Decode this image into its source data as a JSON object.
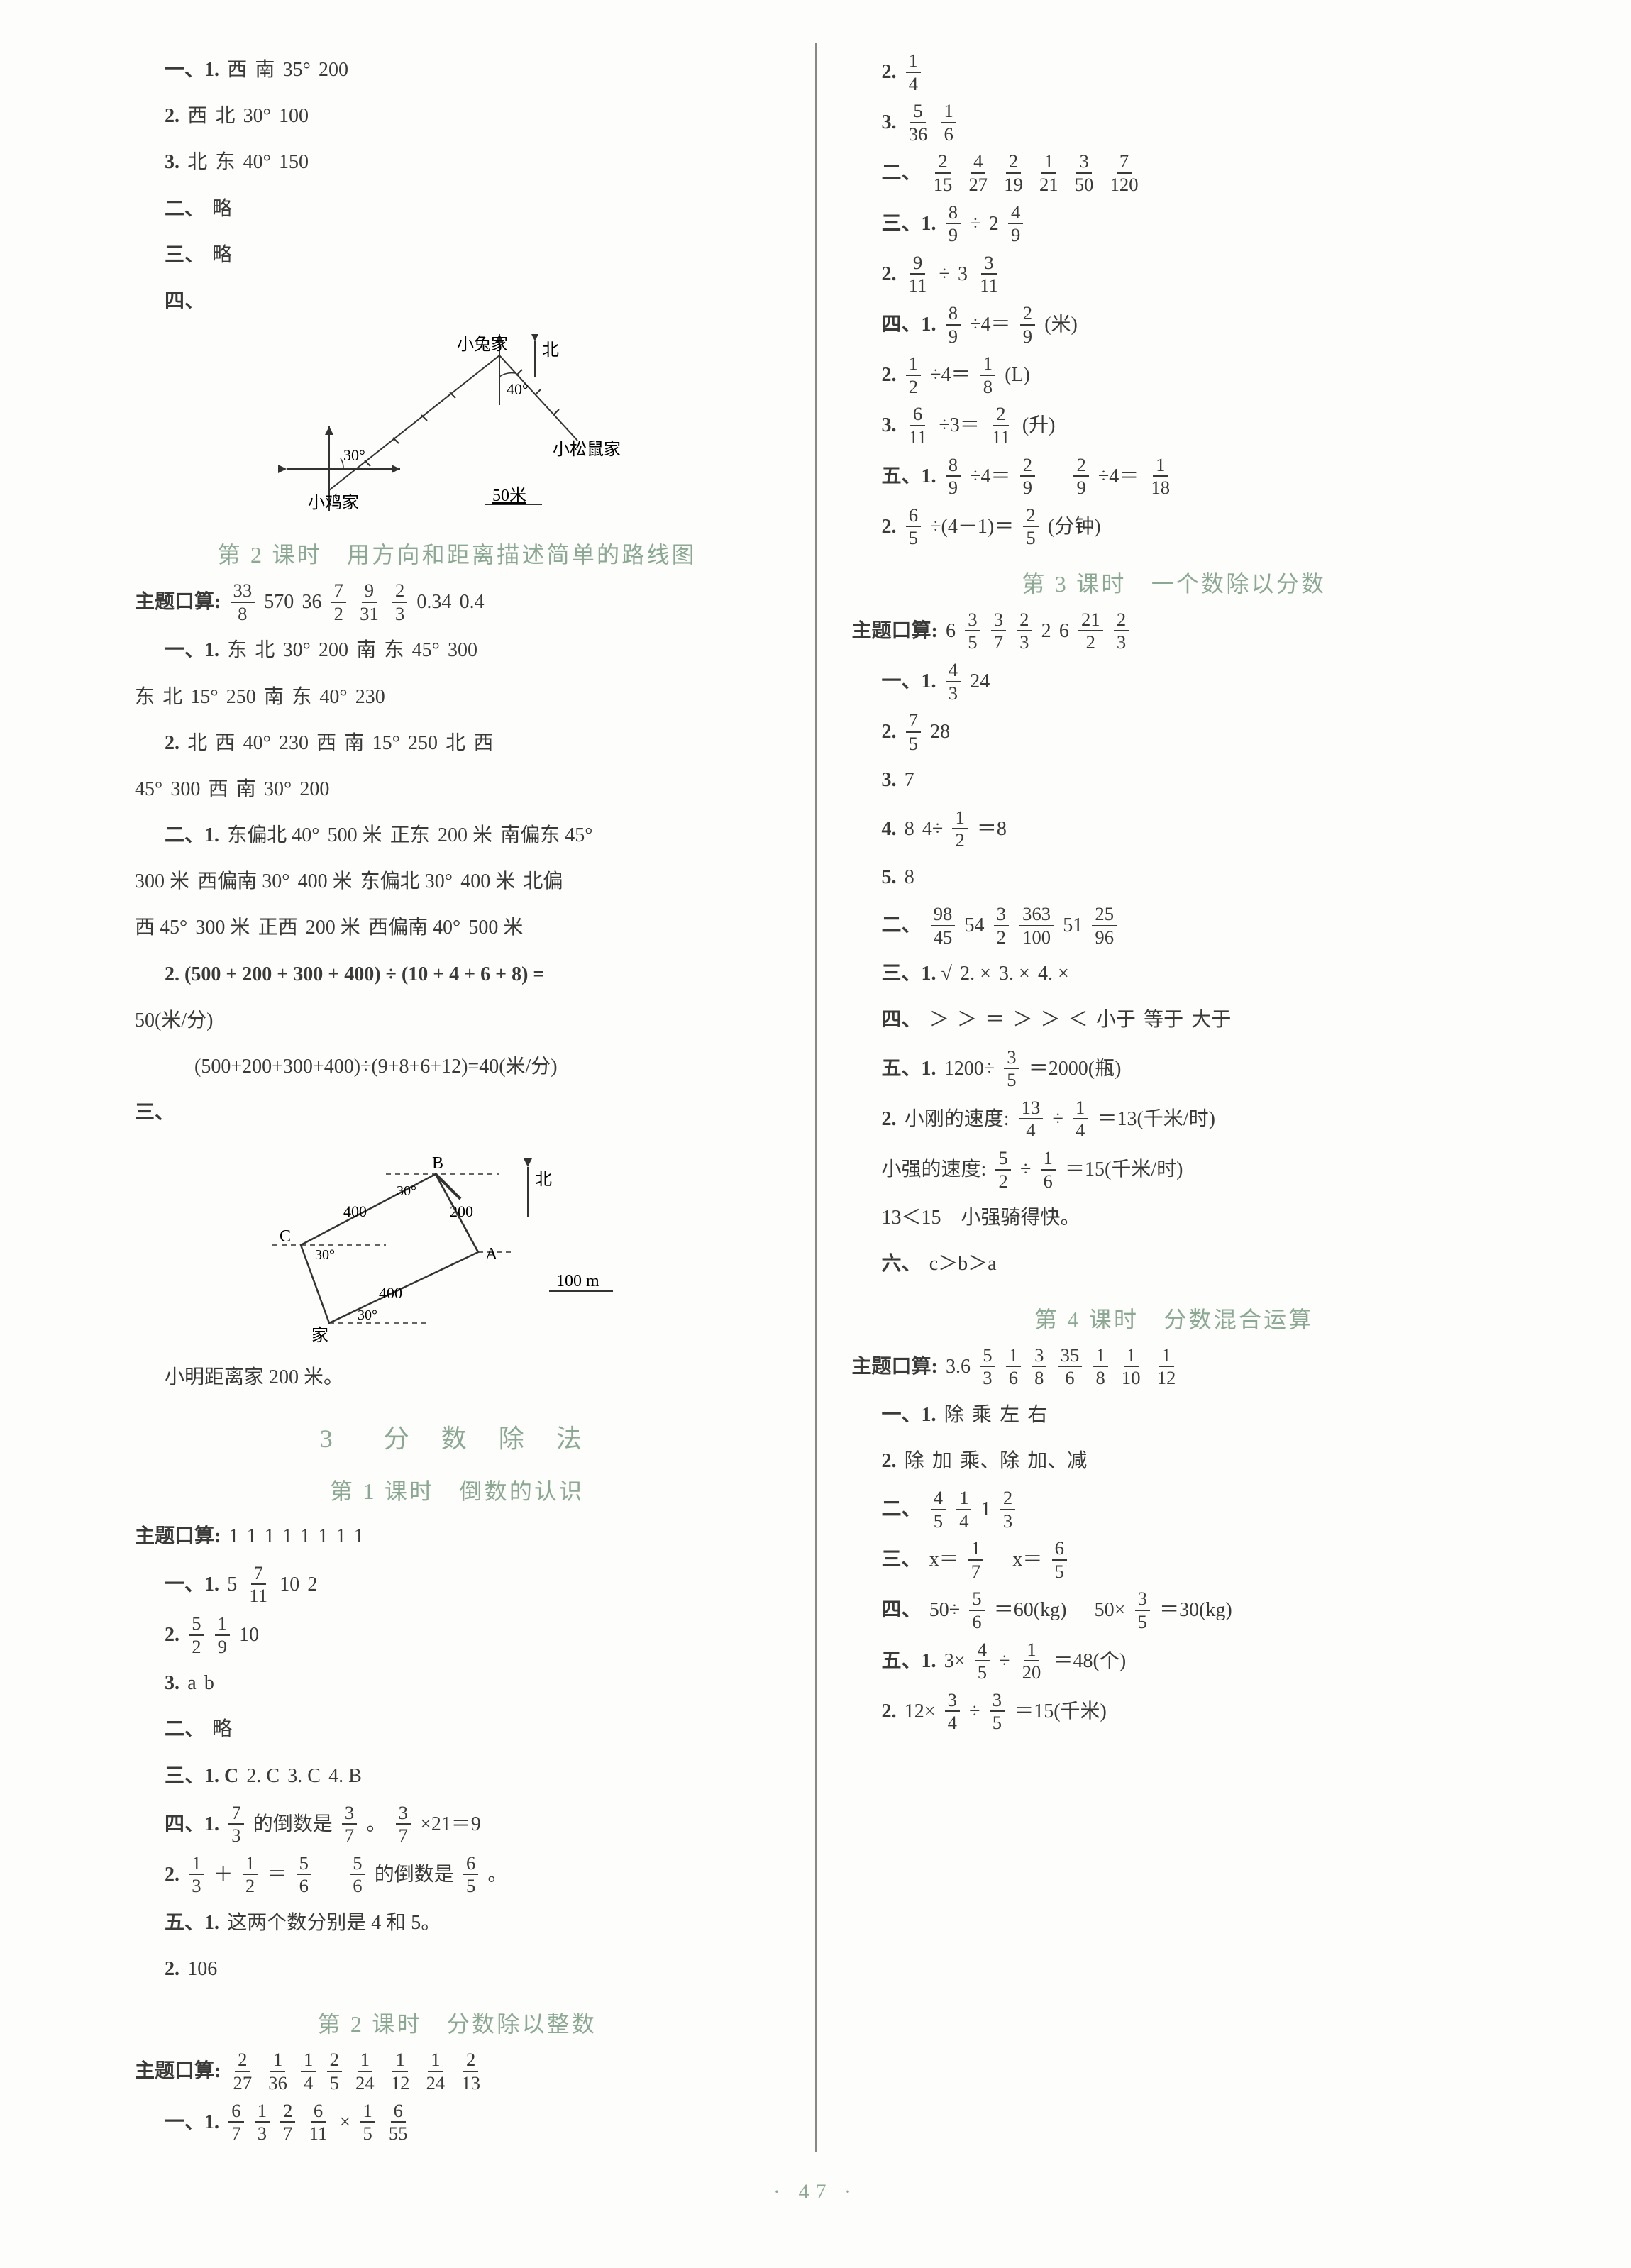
{
  "page_number": "47",
  "colors": {
    "accent": "#8aa892",
    "text": "#3a3a38",
    "bg": "#fdfdfb",
    "rule": "#888888"
  },
  "left": {
    "top_block": [
      {
        "prefix": "一、1.",
        "parts": [
          "西",
          "南",
          "35°",
          "200"
        ]
      },
      {
        "prefix": "2.",
        "parts": [
          "西",
          "北",
          "30°",
          "100"
        ]
      },
      {
        "prefix": "3.",
        "parts": [
          "北",
          "东",
          "40°",
          "150"
        ]
      },
      {
        "prefix": "二、",
        "parts": [
          "略"
        ]
      },
      {
        "prefix": "三、",
        "parts": [
          "略"
        ]
      },
      {
        "prefix": "四、",
        "parts": []
      }
    ],
    "diagram1": {
      "labels": {
        "rabbit": "小兔家",
        "north": "北",
        "chicken": "小鸡家",
        "squirrel": "小松鼠家",
        "scale": "50米",
        "a30": "30°",
        "a40": "40°"
      }
    },
    "lesson2_title": "第 2 课时　用方向和距离描述简单的路线图",
    "lesson2": {
      "kousuan_label": "主题口算:",
      "kousuan": [
        {
          "f": [
            "33",
            "8"
          ]
        },
        "570",
        "36",
        {
          "f": [
            "7",
            "2"
          ]
        },
        {
          "f": [
            "9",
            "31"
          ]
        },
        {
          "f": [
            "2",
            "3"
          ]
        },
        "0.34",
        "0.4"
      ],
      "q1": [
        {
          "prefix": "一、1.",
          "parts": [
            "东",
            "北",
            "30°",
            "200",
            "南",
            "东",
            "45°",
            "300"
          ]
        },
        {
          "prefix": "",
          "parts": [
            "东",
            "北",
            "15°",
            "250",
            "南",
            "东",
            "40°",
            "230"
          ]
        },
        {
          "prefix": "2.",
          "parts": [
            "北",
            "西",
            "40°",
            "230",
            "西",
            "南",
            "15°",
            "250",
            "北",
            "西"
          ]
        },
        {
          "prefix": "",
          "parts": [
            "45°",
            "300",
            "西",
            "南",
            "30°",
            "200"
          ]
        },
        {
          "prefix": "二、1.",
          "parts": [
            "东偏北 40°",
            "500 米",
            "正东",
            "200 米",
            "南偏东 45°"
          ]
        },
        {
          "prefix": "",
          "parts": [
            "300 米",
            "西偏南 30°",
            "400 米",
            "东偏北 30°",
            "400 米",
            "北偏"
          ]
        },
        {
          "prefix": "",
          "parts": [
            "西 45°",
            "300 米",
            "正西",
            "200 米",
            "西偏南 40°",
            "500 米"
          ]
        }
      ],
      "q2a": "2. (500 + 200 + 300 + 400) ÷ (10 + 4 + 6 + 8) =",
      "q2b": "50(米/分)",
      "q2c": "(500+200+300+400)÷(9+8+6+12)=40(米/分)",
      "q3_label": "三、",
      "diagram2": {
        "labels": {
          "B": "B",
          "A": "A",
          "C": "C",
          "home": "家",
          "north": "北",
          "scale": "100 m",
          "d200": "200",
          "d400a": "400",
          "d400b": "400",
          "a30a": "30°",
          "a30b": "30°",
          "a30c": "30°"
        }
      },
      "footer": "小明距离家 200 米。"
    },
    "section3_title": "3　分 数 除 法",
    "lesson1_title": "第 1 课时　倒数的认识",
    "lesson1": {
      "kousuan_label": "主题口算:",
      "kousuan": [
        "1",
        "1",
        "1",
        "1",
        "1",
        "1",
        "1",
        "1"
      ],
      "lines": [
        {
          "prefix": "一、1.",
          "parts": [
            "5",
            {
              "f": [
                "7",
                "11"
              ]
            },
            "10",
            "2"
          ]
        },
        {
          "prefix": "2.",
          "parts": [
            {
              "f": [
                "5",
                "2"
              ]
            },
            {
              "f": [
                "1",
                "9"
              ]
            },
            "10"
          ]
        },
        {
          "prefix": "3.",
          "parts": [
            "a",
            "b"
          ]
        },
        {
          "prefix": "二、",
          "parts": [
            "略"
          ]
        },
        {
          "prefix": "三、1. C",
          "parts": [
            "2. C",
            "3. C",
            "4. B"
          ]
        }
      ],
      "q4": [
        {
          "pre": "四、1.",
          "parts": [
            {
              "f": [
                "7",
                "3"
              ]
            },
            "的倒数是",
            {
              "f": [
                "3",
                "7"
              ]
            },
            "。",
            {
              "f": [
                "3",
                "7"
              ]
            },
            "×21＝9"
          ]
        },
        {
          "pre": "2.",
          "parts": [
            {
              "f": [
                "1",
                "3"
              ]
            },
            "＋",
            {
              "f": [
                "1",
                "2"
              ]
            },
            "＝",
            {
              "f": [
                "5",
                "6"
              ]
            },
            "　",
            {
              "f": [
                "5",
                "6"
              ]
            },
            "的倒数是",
            {
              "f": [
                "6",
                "5"
              ]
            },
            "。"
          ]
        },
        {
          "pre": "五、1.",
          "parts": [
            "这两个数分别是 4 和 5。"
          ]
        },
        {
          "pre": "2.",
          "parts": [
            "106"
          ]
        }
      ]
    },
    "lesson_b_title": "第 2 课时　分数除以整数",
    "lesson_b": {
      "kousuan_label": "主题口算:",
      "kousuan": [
        {
          "f": [
            "2",
            "27"
          ]
        },
        {
          "f": [
            "1",
            "36"
          ]
        },
        {
          "f": [
            "1",
            "4"
          ]
        },
        {
          "f": [
            "2",
            "5"
          ]
        },
        {
          "f": [
            "1",
            "24"
          ]
        },
        {
          "f": [
            "1",
            "12"
          ]
        },
        {
          "f": [
            "1",
            "24"
          ]
        },
        {
          "f": [
            "2",
            "13"
          ]
        }
      ],
      "line1": {
        "prefix": "一、1.",
        "parts": [
          {
            "f": [
              "6",
              "7"
            ]
          },
          {
            "f": [
              "1",
              "3"
            ]
          },
          {
            "f": [
              "2",
              "7"
            ]
          },
          {
            "f": [
              "6",
              "11"
            ]
          },
          "×",
          {
            "f": [
              "1",
              "5"
            ]
          },
          {
            "f": [
              "6",
              "55"
            ]
          }
        ]
      }
    }
  },
  "right": {
    "cont": [
      {
        "pre": "2.",
        "parts": [
          {
            "f": [
              "1",
              "4"
            ]
          }
        ]
      },
      {
        "pre": "3.",
        "parts": [
          {
            "f": [
              "5",
              "36"
            ]
          },
          {
            "f": [
              "1",
              "6"
            ]
          }
        ]
      },
      {
        "pre": "二、",
        "parts": [
          {
            "f": [
              "2",
              "15"
            ]
          },
          {
            "f": [
              "4",
              "27"
            ]
          },
          {
            "f": [
              "2",
              "19"
            ]
          },
          {
            "f": [
              "1",
              "21"
            ]
          },
          {
            "f": [
              "3",
              "50"
            ]
          },
          {
            "f": [
              "7",
              "120"
            ]
          }
        ]
      },
      {
        "pre": "三、1.",
        "parts": [
          {
            "f": [
              "8",
              "9"
            ]
          },
          "÷",
          "2",
          {
            "f": [
              "4",
              "9"
            ]
          }
        ]
      },
      {
        "pre": "2.",
        "parts": [
          {
            "f": [
              "9",
              "11"
            ]
          },
          "÷",
          "3",
          {
            "f": [
              "3",
              "11"
            ]
          }
        ]
      },
      {
        "pre": "四、1.",
        "parts": [
          {
            "f": [
              "8",
              "9"
            ]
          },
          "÷4＝",
          {
            "f": [
              "2",
              "9"
            ]
          },
          "(米)"
        ]
      },
      {
        "pre": "2.",
        "parts": [
          {
            "f": [
              "1",
              "2"
            ]
          },
          "÷4＝",
          {
            "f": [
              "1",
              "8"
            ]
          },
          "(L)"
        ]
      },
      {
        "pre": "3.",
        "parts": [
          {
            "f": [
              "6",
              "11"
            ]
          },
          "÷3＝",
          {
            "f": [
              "2",
              "11"
            ]
          },
          "(升)"
        ]
      },
      {
        "pre": "五、1.",
        "parts": [
          {
            "f": [
              "8",
              "9"
            ]
          },
          "÷4＝",
          {
            "f": [
              "2",
              "9"
            ]
          },
          "　",
          {
            "f": [
              "2",
              "9"
            ]
          },
          "÷4＝",
          {
            "f": [
              "1",
              "18"
            ]
          }
        ]
      },
      {
        "pre": "2.",
        "parts": [
          {
            "f": [
              "6",
              "5"
            ]
          },
          "÷(4－1)＝",
          {
            "f": [
              "2",
              "5"
            ]
          },
          "(分钟)"
        ]
      }
    ],
    "lesson3_title": "第 3 课时　一个数除以分数",
    "lesson3": {
      "kousuan_label": "主题口算:",
      "kousuan": [
        "6",
        {
          "f": [
            "3",
            "5"
          ]
        },
        {
          "f": [
            "3",
            "7"
          ]
        },
        {
          "f": [
            "2",
            "3"
          ]
        },
        "2",
        "6",
        {
          "f": [
            "21",
            "2"
          ]
        },
        {
          "f": [
            "2",
            "3"
          ]
        }
      ],
      "lines": [
        {
          "pre": "一、1.",
          "parts": [
            {
              "f": [
                "4",
                "3"
              ]
            },
            "24"
          ]
        },
        {
          "pre": "2.",
          "parts": [
            {
              "f": [
                "7",
                "5"
              ]
            },
            "28"
          ]
        },
        {
          "pre": "3.",
          "parts": [
            "7"
          ]
        },
        {
          "pre": "4.",
          "parts": [
            "8",
            "4÷",
            {
              "f": [
                "1",
                "2"
              ]
            },
            "＝8"
          ]
        },
        {
          "pre": "5.",
          "parts": [
            "8"
          ]
        },
        {
          "pre": "二、",
          "parts": [
            {
              "f": [
                "98",
                "45"
              ]
            },
            "54",
            {
              "f": [
                "3",
                "2"
              ]
            },
            {
              "f": [
                "363",
                "100"
              ]
            },
            "51",
            {
              "f": [
                "25",
                "96"
              ]
            }
          ]
        },
        {
          "pre": "三、1. √",
          "parts": [
            "2. ×",
            "3. ×",
            "4. ×"
          ]
        },
        {
          "pre": "四、",
          "parts": [
            "＞",
            "＞",
            "＝",
            "＞",
            "＞",
            "＜",
            "小于",
            "等于",
            "大于"
          ]
        },
        {
          "pre": "五、1.",
          "parts": [
            "1200÷",
            {
              "f": [
                "3",
                "5"
              ]
            },
            "＝2000(瓶)"
          ]
        },
        {
          "pre": "2.",
          "parts": [
            "小刚的速度:",
            {
              "f": [
                "13",
                "4"
              ]
            },
            "÷",
            {
              "f": [
                "1",
                "4"
              ]
            },
            "＝13(千米/时)"
          ]
        },
        {
          "pre": "",
          "parts": [
            "小强的速度:",
            {
              "f": [
                "5",
                "2"
              ]
            },
            "÷",
            {
              "f": [
                "1",
                "6"
              ]
            },
            "＝15(千米/时)"
          ]
        },
        {
          "pre": "",
          "parts": [
            "13＜15　小强骑得快。"
          ]
        },
        {
          "pre": "六、",
          "parts": [
            "c＞b＞a"
          ]
        }
      ]
    },
    "lesson4_title": "第 4 课时　分数混合运算",
    "lesson4": {
      "kousuan_label": "主题口算:",
      "kousuan": [
        "3.6",
        {
          "f": [
            "5",
            "3"
          ]
        },
        {
          "f": [
            "1",
            "6"
          ]
        },
        {
          "f": [
            "3",
            "8"
          ]
        },
        {
          "f": [
            "35",
            "6"
          ]
        },
        {
          "f": [
            "1",
            "8"
          ]
        },
        {
          "f": [
            "1",
            "10"
          ]
        },
        {
          "f": [
            "1",
            "12"
          ]
        }
      ],
      "lines": [
        {
          "pre": "一、1.",
          "parts": [
            "除",
            "乘",
            "左",
            "右"
          ]
        },
        {
          "pre": "2.",
          "parts": [
            "除",
            "加",
            "乘、除",
            "加、减"
          ]
        },
        {
          "pre": "二、",
          "parts": [
            {
              "f": [
                "4",
                "5"
              ]
            },
            {
              "f": [
                "1",
                "4"
              ]
            },
            "1",
            {
              "f": [
                "2",
                "3"
              ]
            }
          ]
        },
        {
          "pre": "三、",
          "parts": [
            "x＝",
            {
              "f": [
                "1",
                "7"
              ]
            },
            "　x＝",
            {
              "f": [
                "6",
                "5"
              ]
            }
          ]
        },
        {
          "pre": "四、",
          "parts": [
            "50÷",
            {
              "f": [
                "5",
                "6"
              ]
            },
            "＝60(kg)",
            "　50×",
            {
              "f": [
                "3",
                "5"
              ]
            },
            "＝30(kg)"
          ]
        },
        {
          "pre": "五、1.",
          "parts": [
            "3×",
            {
              "f": [
                "4",
                "5"
              ]
            },
            "÷",
            {
              "f": [
                "1",
                "20"
              ]
            },
            "＝48(个)"
          ]
        },
        {
          "pre": "2.",
          "parts": [
            "12×",
            {
              "f": [
                "3",
                "4"
              ]
            },
            "÷",
            {
              "f": [
                "3",
                "5"
              ]
            },
            "＝15(千米)"
          ]
        }
      ]
    }
  }
}
